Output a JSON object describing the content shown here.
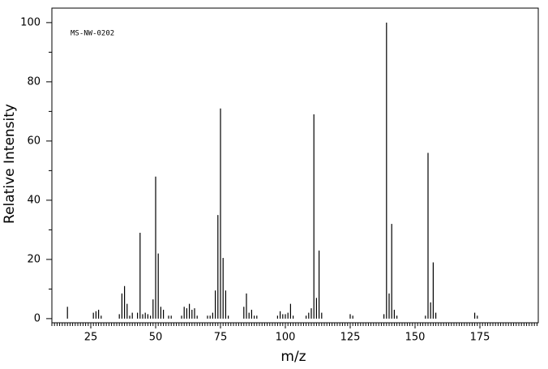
{
  "chart_data": {
    "type": "stem",
    "annotation": "MS-NW-0202",
    "xlabel": "m/z",
    "ylabel": "Relative Intensity",
    "color": "#000000",
    "xlim": [
      10,
      197.5
    ],
    "ylim": [
      -1.4,
      104.9
    ],
    "xticks": [
      25,
      50,
      75,
      100,
      125,
      150,
      175
    ],
    "yticks": [
      0,
      20,
      40,
      60,
      80,
      100
    ],
    "x": [
      16,
      26,
      27,
      28,
      29,
      36,
      37,
      38,
      39,
      40,
      41,
      43,
      44,
      45,
      46,
      47,
      48,
      49,
      50,
      51,
      52,
      53,
      55,
      56,
      60,
      61,
      62,
      63,
      64,
      65,
      66,
      70,
      71,
      72,
      73,
      74,
      75,
      76,
      77,
      78,
      84,
      85,
      86,
      87,
      88,
      89,
      97,
      98,
      99,
      100,
      101,
      102,
      103,
      108,
      109,
      110,
      111,
      112,
      113,
      114,
      125,
      126,
      138,
      139,
      140,
      141,
      142,
      143,
      154,
      155,
      156,
      157,
      158,
      173,
      174
    ],
    "values": [
      4,
      2,
      2.5,
      3,
      1,
      1.5,
      8.5,
      11,
      5,
      1,
      2,
      2,
      29,
      1.5,
      2,
      1.5,
      1,
      6.5,
      48,
      22,
      4,
      3,
      1,
      1,
      1,
      4,
      3.5,
      5,
      3,
      3.5,
      1,
      1,
      1,
      2,
      9.5,
      35,
      71,
      20.5,
      9.5,
      1,
      4,
      8.5,
      2,
      3,
      1,
      1,
      1,
      2.5,
      1.5,
      1.5,
      2,
      5,
      1,
      1,
      2,
      3.5,
      69,
      7,
      23,
      2,
      1.5,
      1,
      1.5,
      100,
      8.5,
      32,
      3,
      1,
      1,
      56,
      5.5,
      19,
      2,
      2,
      1
    ]
  }
}
